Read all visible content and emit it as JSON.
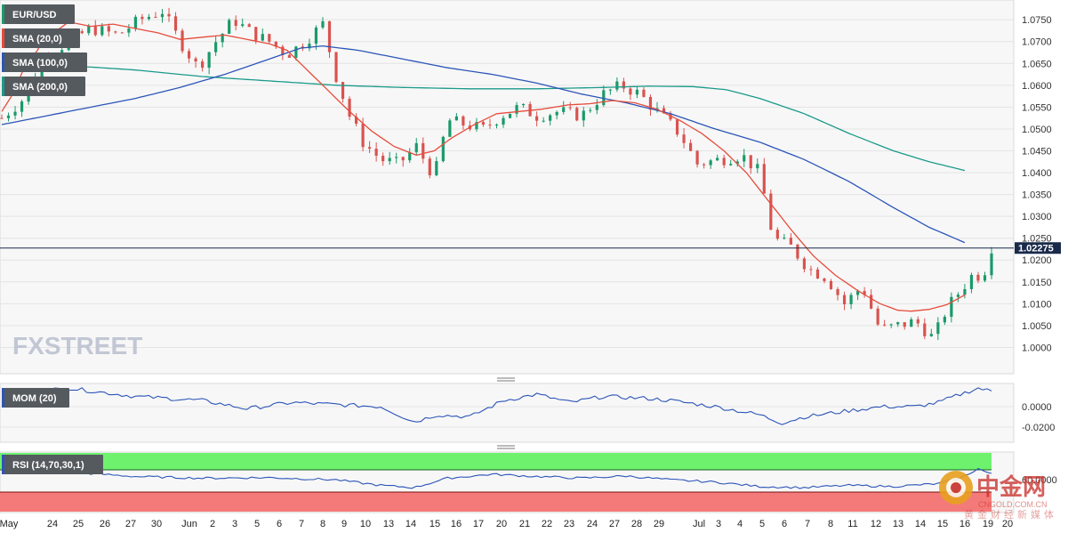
{
  "chart_data": [
    {
      "type": "candlestick",
      "symbol": "EUR/USD",
      "indicators": [
        {
          "name": "SMA (20,0)",
          "color": "#e74c3c"
        },
        {
          "name": "SMA (100,0)",
          "color": "#2c55b8"
        },
        {
          "name": "SMA (200,0)",
          "color": "#1a9a8a"
        }
      ],
      "ylim": [
        0.995,
        1.0785
      ],
      "yticks": [
        "1.0000",
        "1.0050",
        "1.0100",
        "1.0150",
        "1.0200",
        "1.0250",
        "1.0300",
        "1.0350",
        "1.0400",
        "1.0450",
        "1.0500",
        "1.0550",
        "1.0600",
        "1.0650",
        "1.0700",
        "1.0750"
      ],
      "current_price": "1.02275",
      "current_value": 1.02275,
      "grid": true,
      "sma20": [
        [
          0,
          1.054
        ],
        [
          5,
          1.058
        ],
        [
          10,
          1.064
        ],
        [
          16,
          1.068
        ],
        [
          20,
          1.072
        ],
        [
          26,
          1.073
        ],
        [
          30,
          1.0745
        ],
        [
          40,
          1.0735
        ],
        [
          50,
          1.074
        ],
        [
          60,
          1.073
        ],
        [
          70,
          1.072
        ],
        [
          80,
          1.0705
        ],
        [
          90,
          1.071
        ],
        [
          100,
          1.0715
        ],
        [
          110,
          1.0705
        ],
        [
          120,
          1.0695
        ],
        [
          128,
          1.068
        ],
        [
          136,
          1.064
        ],
        [
          146,
          1.059
        ],
        [
          156,
          1.054
        ],
        [
          166,
          1.0495
        ],
        [
          176,
          1.046
        ],
        [
          186,
          1.044
        ],
        [
          194,
          1.045
        ],
        [
          202,
          1.048
        ],
        [
          212,
          1.051
        ],
        [
          222,
          1.0535
        ],
        [
          232,
          1.054
        ],
        [
          242,
          1.0545
        ],
        [
          254,
          1.0555
        ],
        [
          264,
          1.0558
        ],
        [
          274,
          1.0565
        ],
        [
          284,
          1.056
        ],
        [
          294,
          1.0545
        ],
        [
          304,
          1.052
        ],
        [
          314,
          1.049
        ],
        [
          324,
          1.045
        ],
        [
          334,
          1.04
        ],
        [
          344,
          1.0335
        ],
        [
          354,
          1.027
        ],
        [
          364,
          1.021
        ],
        [
          374,
          1.0165
        ],
        [
          384,
          1.013
        ],
        [
          394,
          1.01
        ],
        [
          402,
          1.0085
        ],
        [
          408,
          1.0083
        ],
        [
          416,
          1.0087
        ],
        [
          424,
          1.0098
        ],
        [
          432,
          1.012
        ]
      ],
      "sma100": [
        [
          0,
          1.051
        ],
        [
          20,
          1.053
        ],
        [
          40,
          1.055
        ],
        [
          60,
          1.057
        ],
        [
          80,
          1.0595
        ],
        [
          100,
          1.0625
        ],
        [
          120,
          1.066
        ],
        [
          134,
          1.0685
        ],
        [
          144,
          1.069
        ],
        [
          160,
          1.068
        ],
        [
          180,
          1.066
        ],
        [
          200,
          1.064
        ],
        [
          220,
          1.0625
        ],
        [
          240,
          1.0605
        ],
        [
          260,
          1.058
        ],
        [
          280,
          1.056
        ],
        [
          300,
          1.0535
        ],
        [
          320,
          1.05
        ],
        [
          340,
          1.047
        ],
        [
          360,
          1.043
        ],
        [
          380,
          1.038
        ],
        [
          400,
          1.032
        ],
        [
          416,
          1.0275
        ],
        [
          432,
          1.024
        ]
      ],
      "sma200": [
        [
          0,
          1.0655
        ],
        [
          30,
          1.0645
        ],
        [
          60,
          1.0635
        ],
        [
          90,
          1.062
        ],
        [
          120,
          1.061
        ],
        [
          150,
          1.06
        ],
        [
          180,
          1.0595
        ],
        [
          210,
          1.0592
        ],
        [
          240,
          1.0592
        ],
        [
          270,
          1.0595
        ],
        [
          290,
          1.0598
        ],
        [
          310,
          1.0597
        ],
        [
          325,
          1.059
        ],
        [
          340,
          1.057
        ],
        [
          360,
          1.0535
        ],
        [
          380,
          1.049
        ],
        [
          400,
          1.045
        ],
        [
          416,
          1.0425
        ],
        [
          432,
          1.0405
        ]
      ],
      "price_path": [
        [
          0,
          1.0525
        ],
        [
          10,
          1.057
        ],
        [
          18,
          1.066
        ],
        [
          30,
          1.07
        ],
        [
          40,
          1.073
        ],
        [
          52,
          1.0715
        ],
        [
          62,
          1.075
        ],
        [
          72,
          1.077
        ],
        [
          80,
          1.07
        ],
        [
          88,
          1.064
        ],
        [
          96,
          1.07
        ],
        [
          104,
          1.075
        ],
        [
          112,
          1.072
        ],
        [
          120,
          1.07
        ],
        [
          128,
          1.067
        ],
        [
          136,
          1.07
        ],
        [
          144,
          1.074
        ],
        [
          150,
          1.062
        ],
        [
          156,
          1.053
        ],
        [
          162,
          1.047
        ],
        [
          170,
          1.043
        ],
        [
          178,
          1.042
        ],
        [
          186,
          1.046
        ],
        [
          194,
          1.039
        ],
        [
          200,
          1.052
        ],
        [
          208,
          1.051
        ],
        [
          216,
          1.05
        ],
        [
          224,
          1.053
        ],
        [
          232,
          1.055
        ],
        [
          240,
          1.053
        ],
        [
          250,
          1.054
        ],
        [
          260,
          1.053
        ],
        [
          270,
          1.058
        ],
        [
          278,
          1.06
        ],
        [
          286,
          1.058
        ],
        [
          296,
          1.053
        ],
        [
          304,
          1.049
        ],
        [
          312,
          1.042
        ],
        [
          322,
          1.043
        ],
        [
          332,
          1.044
        ],
        [
          340,
          1.04
        ],
        [
          346,
          1.025
        ],
        [
          354,
          1.023
        ],
        [
          362,
          1.018
        ],
        [
          370,
          1.016
        ],
        [
          378,
          1.01
        ],
        [
          386,
          1.014
        ],
        [
          394,
          1.004
        ],
        [
          402,
          1.005
        ],
        [
          410,
          1.006
        ],
        [
          418,
          1.002
        ],
        [
          424,
          1.009
        ],
        [
          430,
          1.013
        ],
        [
          436,
          1.017
        ],
        [
          440,
          1.016
        ],
        [
          444,
          1.023
        ]
      ],
      "x_ticks": [
        "May",
        "24",
        "25",
        "26",
        "27",
        "30",
        "Jun",
        "2",
        "3",
        "5",
        "6",
        "7",
        "8",
        "9",
        "10",
        "13",
        "14",
        "15",
        "16",
        "17",
        "20",
        "21",
        "22",
        "23",
        "24",
        "27",
        "28",
        "29",
        "Jul",
        "3",
        "4",
        "5",
        "6",
        "7",
        "8",
        "11",
        "12",
        "13",
        "14",
        "15",
        "16",
        "19",
        "20"
      ]
    },
    {
      "type": "line",
      "name": "MOM (20)",
      "color": "#2c55b8",
      "yticks": [
        "0.0000",
        "-0.0200"
      ],
      "values_path": [
        [
          0,
          0.012
        ],
        [
          30,
          0.018
        ],
        [
          60,
          0.01
        ],
        [
          90,
          0.006
        ],
        [
          110,
          -0.002
        ],
        [
          130,
          0.004
        ],
        [
          150,
          0.002
        ],
        [
          170,
          0.0
        ],
        [
          185,
          -0.015
        ],
        [
          195,
          -0.008
        ],
        [
          210,
          -0.01
        ],
        [
          225,
          0.006
        ],
        [
          240,
          0.012
        ],
        [
          255,
          0.004
        ],
        [
          270,
          0.01
        ],
        [
          290,
          0.008
        ],
        [
          300,
          0.006
        ],
        [
          320,
          0.0
        ],
        [
          340,
          -0.008
        ],
        [
          350,
          -0.016
        ],
        [
          360,
          -0.01
        ],
        [
          380,
          -0.004
        ],
        [
          395,
          0.0
        ],
        [
          410,
          0.0
        ],
        [
          420,
          0.004
        ],
        [
          430,
          0.012
        ],
        [
          438,
          0.018
        ],
        [
          444,
          0.015
        ]
      ]
    },
    {
      "type": "line",
      "name": "RSI (14,70,30,1)",
      "color": "#2c55b8",
      "overbought": 70,
      "oversold": 30,
      "tick": "60.0000",
      "values_path": [
        [
          0,
          70
        ],
        [
          30,
          66
        ],
        [
          60,
          58
        ],
        [
          90,
          55
        ],
        [
          120,
          56
        ],
        [
          150,
          52
        ],
        [
          170,
          42
        ],
        [
          185,
          38
        ],
        [
          200,
          55
        ],
        [
          220,
          62
        ],
        [
          240,
          58
        ],
        [
          260,
          55
        ],
        [
          280,
          59
        ],
        [
          300,
          52
        ],
        [
          320,
          48
        ],
        [
          340,
          40
        ],
        [
          360,
          38
        ],
        [
          380,
          42
        ],
        [
          400,
          40
        ],
        [
          420,
          45
        ],
        [
          430,
          55
        ],
        [
          438,
          72
        ],
        [
          444,
          62
        ]
      ]
    }
  ],
  "watermark": {
    "brand": "FXSTREET",
    "cn_logo": "中金网",
    "cn_domain": "CNGOLD.COM.CN",
    "cn_tagline": "黄金财经新媒体"
  },
  "colors": {
    "up": "#1a9a6a",
    "down": "#d9534f",
    "bg": "#f7f7f7",
    "ob_band": "#6ef26e",
    "os_band": "#f47a7a",
    "price_line": "#1a2a4a"
  }
}
